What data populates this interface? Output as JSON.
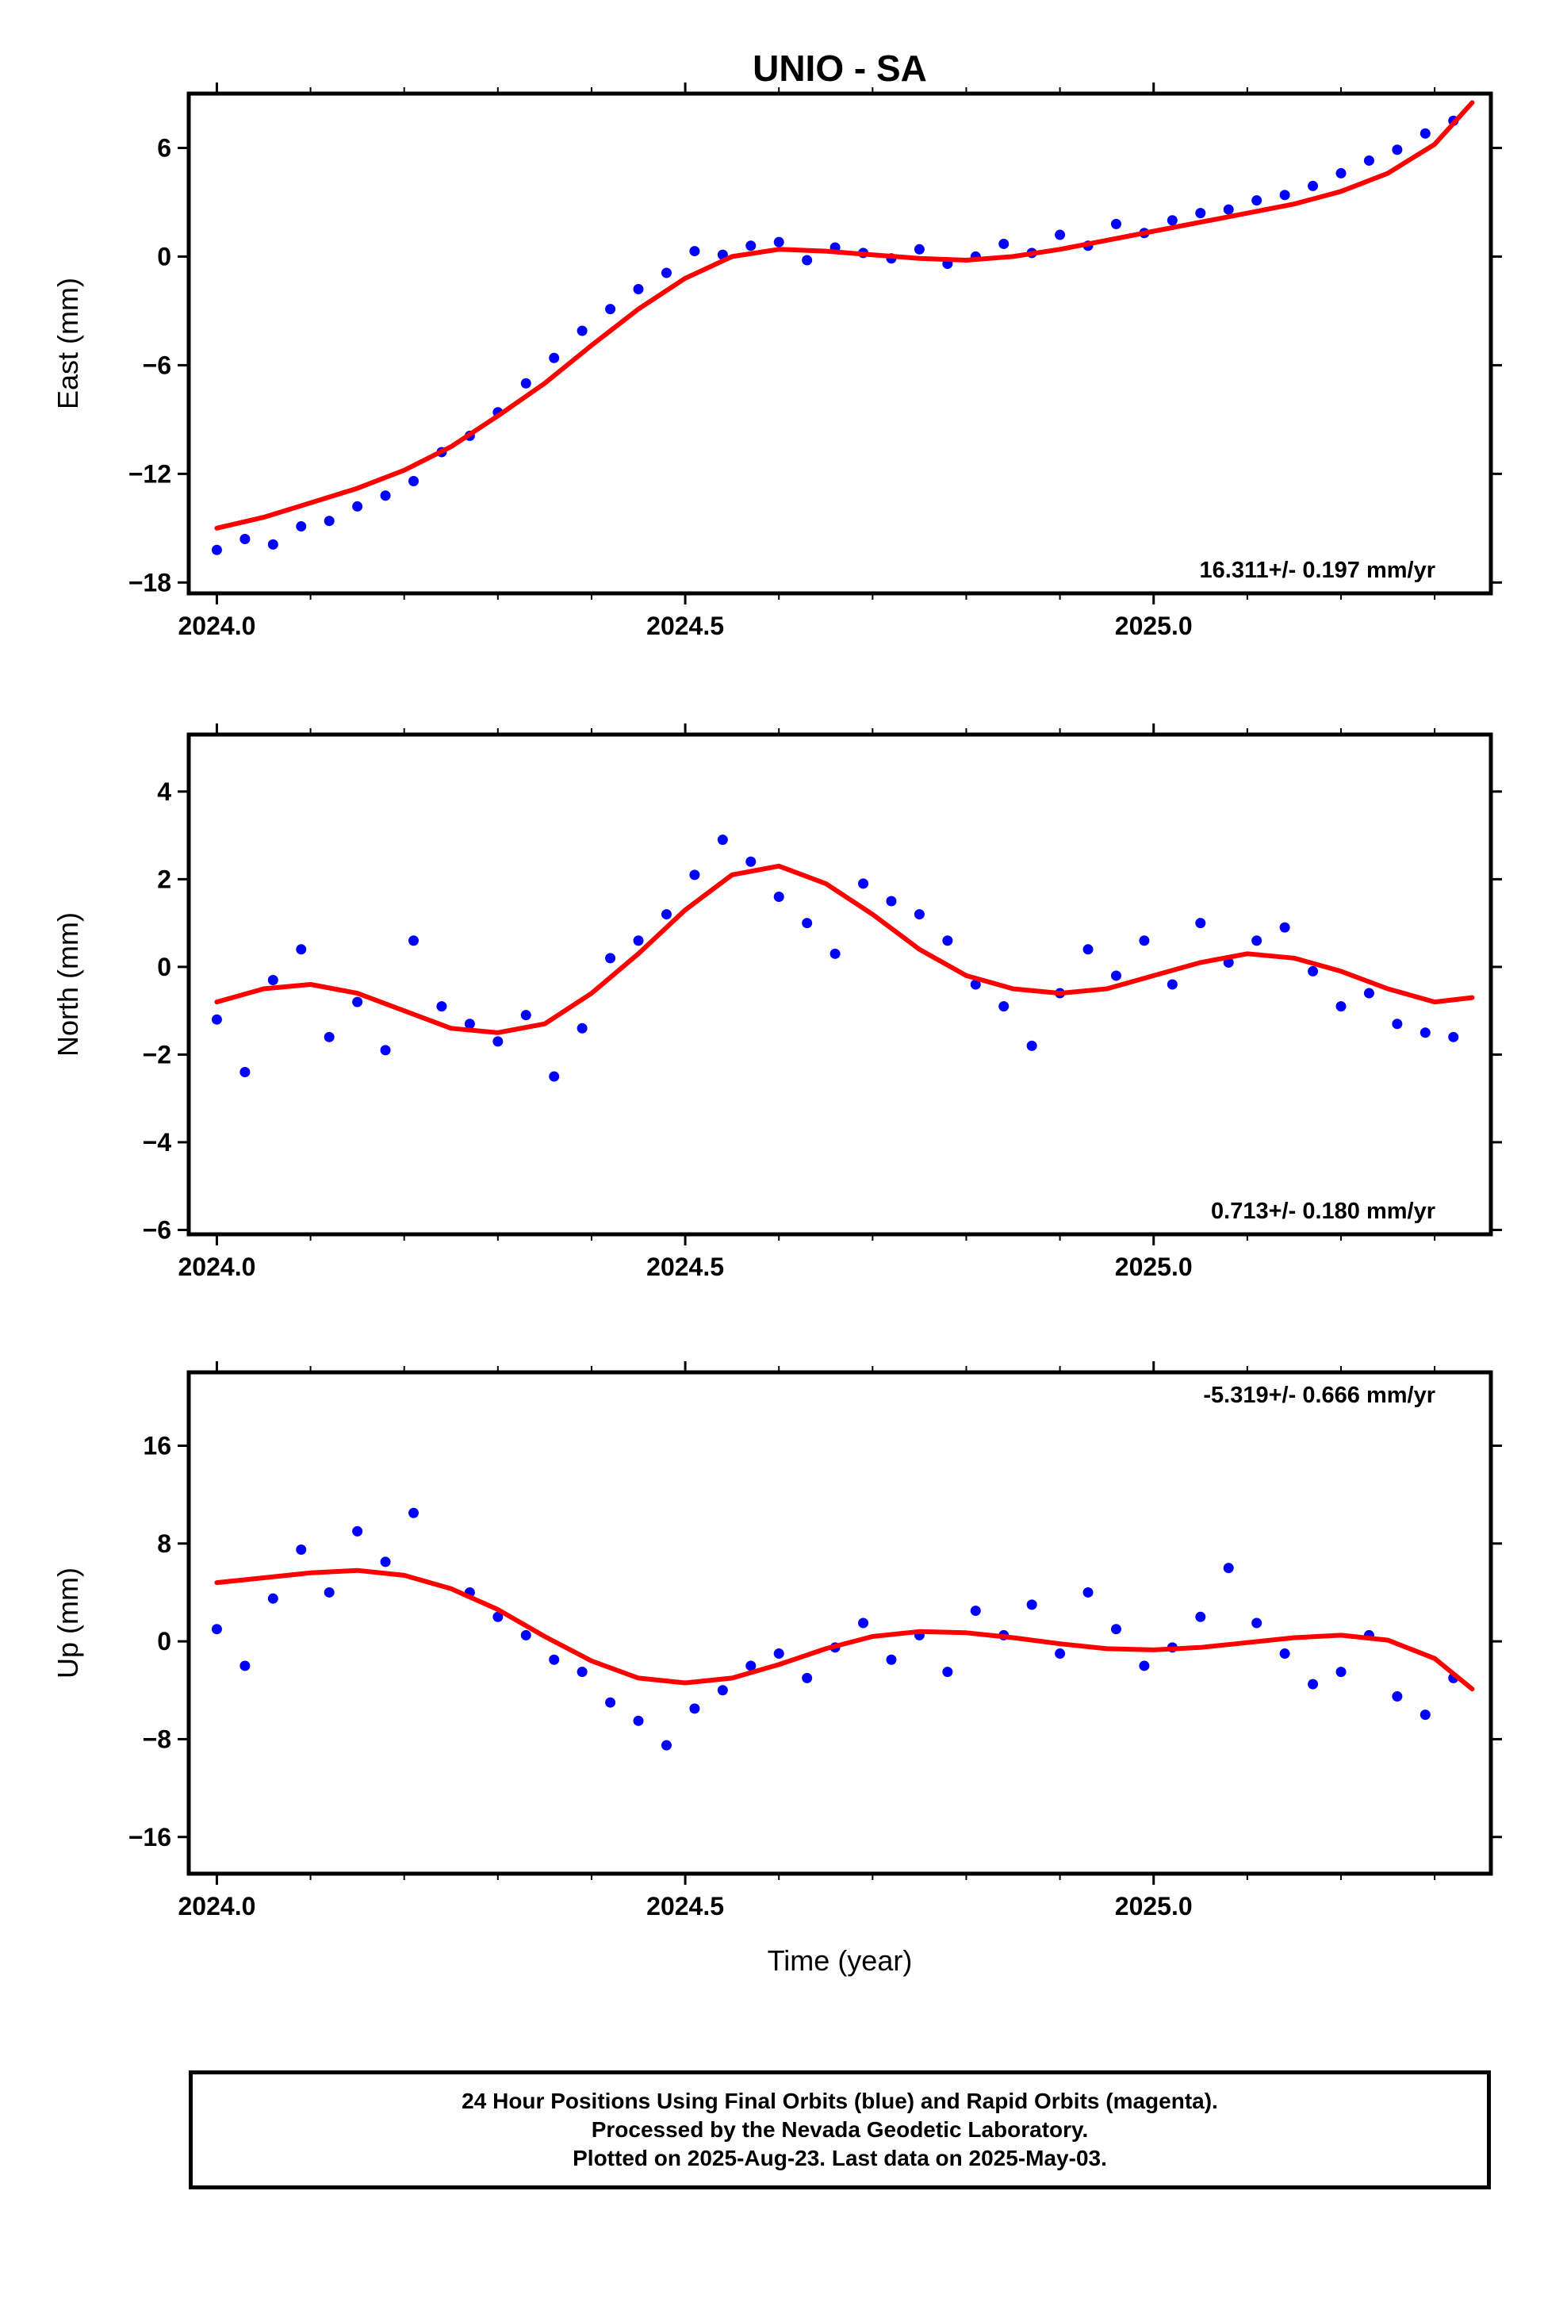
{
  "colors": {
    "points": "#0000ff",
    "model": "#ff0000",
    "frame": "#000000"
  },
  "chart_data": [
    {
      "type": "scatter",
      "title": "UNIO - SA",
      "ylabel": "East (mm)",
      "xlabel": "",
      "xlim": [
        2023.97,
        2025.36
      ],
      "ylim": [
        -18.6,
        9.0
      ],
      "x_ticks": [
        2024.0,
        2024.5,
        2025.0
      ],
      "x_tick_labels": [
        "2024.0",
        "2024.5",
        "2025.0"
      ],
      "y_ticks": [
        -18,
        -12,
        -6,
        0,
        6
      ],
      "y_tick_labels": [
        "−18",
        "−12",
        "−6",
        "0",
        "6"
      ],
      "rate_label": "16.311+/- 0.197 mm/yr",
      "series": [
        {
          "kind": "points",
          "x": [
            2024.0,
            2024.03,
            2024.06,
            2024.09,
            2024.12,
            2024.15,
            2024.18,
            2024.21,
            2024.24,
            2024.27,
            2024.3,
            2024.33,
            2024.36,
            2024.39,
            2024.42,
            2024.45,
            2024.48,
            2024.51,
            2024.54,
            2024.57,
            2024.6,
            2024.63,
            2024.66,
            2024.69,
            2024.72,
            2024.75,
            2024.78,
            2024.81,
            2024.84,
            2024.87,
            2024.9,
            2024.93,
            2024.96,
            2024.99,
            2025.02,
            2025.05,
            2025.08,
            2025.11,
            2025.14,
            2025.17,
            2025.2,
            2025.23,
            2025.26,
            2025.29,
            2025.32
          ],
          "y": [
            -16.2,
            -15.6,
            -15.9,
            -14.9,
            -14.6,
            -13.8,
            -13.2,
            -12.4,
            -10.8,
            -9.9,
            -8.6,
            -7.0,
            -5.6,
            -4.1,
            -2.9,
            -1.8,
            -0.9,
            0.3,
            0.1,
            0.6,
            0.8,
            -0.2,
            0.5,
            0.2,
            -0.1,
            0.4,
            -0.4,
            0.0,
            0.7,
            0.2,
            1.2,
            0.6,
            1.8,
            1.3,
            2.0,
            2.4,
            2.6,
            3.1,
            3.4,
            3.9,
            4.6,
            5.3,
            5.9,
            6.8,
            7.5
          ]
        },
        {
          "kind": "model",
          "x": [
            2024.0,
            2024.05,
            2024.1,
            2024.15,
            2024.2,
            2024.25,
            2024.3,
            2024.35,
            2024.4,
            2024.45,
            2024.5,
            2024.55,
            2024.6,
            2024.65,
            2024.7,
            2024.75,
            2024.8,
            2024.85,
            2024.9,
            2024.95,
            2025.0,
            2025.05,
            2025.1,
            2025.15,
            2025.2,
            2025.25,
            2025.3,
            2025.34
          ],
          "y": [
            -15.0,
            -14.4,
            -13.6,
            -12.8,
            -11.8,
            -10.5,
            -8.8,
            -7.0,
            -4.9,
            -2.9,
            -1.2,
            0.0,
            0.4,
            0.3,
            0.1,
            -0.1,
            -0.2,
            0.0,
            0.4,
            0.9,
            1.4,
            1.9,
            2.4,
            2.9,
            3.6,
            4.6,
            6.2,
            8.5
          ]
        }
      ]
    },
    {
      "type": "scatter",
      "ylabel": "North (mm)",
      "xlabel": "",
      "xlim": [
        2023.97,
        2025.36
      ],
      "ylim": [
        -6.1,
        5.3
      ],
      "x_ticks": [
        2024.0,
        2024.5,
        2025.0
      ],
      "x_tick_labels": [
        "2024.0",
        "2024.5",
        "2025.0"
      ],
      "y_ticks": [
        -6,
        -4,
        -2,
        0,
        2,
        4
      ],
      "y_tick_labels": [
        "−6",
        "−4",
        "−2",
        "0",
        "2",
        "4"
      ],
      "rate_label": "0.713+/- 0.180 mm/yr",
      "series": [
        {
          "kind": "points",
          "x": [
            2024.0,
            2024.03,
            2024.06,
            2024.09,
            2024.12,
            2024.15,
            2024.18,
            2024.21,
            2024.24,
            2024.27,
            2024.3,
            2024.33,
            2024.36,
            2024.39,
            2024.42,
            2024.45,
            2024.48,
            2024.51,
            2024.54,
            2024.57,
            2024.6,
            2024.63,
            2024.66,
            2024.69,
            2024.72,
            2024.75,
            2024.78,
            2024.81,
            2024.84,
            2024.87,
            2024.9,
            2024.93,
            2024.96,
            2024.99,
            2025.02,
            2025.05,
            2025.08,
            2025.11,
            2025.14,
            2025.17,
            2025.2,
            2025.23,
            2025.26,
            2025.29,
            2025.32
          ],
          "y": [
            -1.2,
            -2.4,
            -0.3,
            0.4,
            -1.6,
            -0.8,
            -1.9,
            0.6,
            -0.9,
            -1.3,
            -1.7,
            -1.1,
            -2.5,
            -1.4,
            0.2,
            0.6,
            1.2,
            2.1,
            2.9,
            2.4,
            1.6,
            1.0,
            0.3,
            1.9,
            1.5,
            1.2,
            0.6,
            -0.4,
            -0.9,
            -1.8,
            -0.6,
            0.4,
            -0.2,
            0.6,
            -0.4,
            1.0,
            0.1,
            0.6,
            0.9,
            -0.1,
            -0.9,
            -0.6,
            -1.3,
            -1.5,
            -1.6
          ]
        },
        {
          "kind": "model",
          "x": [
            2024.0,
            2024.05,
            2024.1,
            2024.15,
            2024.2,
            2024.25,
            2024.3,
            2024.35,
            2024.4,
            2024.45,
            2024.5,
            2024.55,
            2024.6,
            2024.65,
            2024.7,
            2024.75,
            2024.8,
            2024.85,
            2024.9,
            2024.95,
            2025.0,
            2025.05,
            2025.1,
            2025.15,
            2025.2,
            2025.25,
            2025.3,
            2025.34
          ],
          "y": [
            -0.8,
            -0.5,
            -0.4,
            -0.6,
            -1.0,
            -1.4,
            -1.5,
            -1.3,
            -0.6,
            0.3,
            1.3,
            2.1,
            2.3,
            1.9,
            1.2,
            0.4,
            -0.2,
            -0.5,
            -0.6,
            -0.5,
            -0.2,
            0.1,
            0.3,
            0.2,
            -0.1,
            -0.5,
            -0.8,
            -0.7
          ]
        }
      ]
    },
    {
      "type": "scatter",
      "ylabel": "Up (mm)",
      "xlabel": "Time (year)",
      "xlim": [
        2023.97,
        2025.36
      ],
      "ylim": [
        -19.0,
        22.0
      ],
      "x_ticks": [
        2024.0,
        2024.5,
        2025.0
      ],
      "x_tick_labels": [
        "2024.0",
        "2024.5",
        "2025.0"
      ],
      "y_ticks": [
        -16,
        -8,
        0,
        8,
        16
      ],
      "y_tick_labels": [
        "−16",
        "−8",
        "0",
        "8",
        "16"
      ],
      "rate_label": "-5.319+/- 0.666 mm/yr",
      "series": [
        {
          "kind": "points",
          "x": [
            2024.0,
            2024.03,
            2024.06,
            2024.09,
            2024.12,
            2024.15,
            2024.18,
            2024.21,
            2024.27,
            2024.3,
            2024.33,
            2024.36,
            2024.39,
            2024.42,
            2024.45,
            2024.48,
            2024.51,
            2024.54,
            2024.57,
            2024.6,
            2024.63,
            2024.66,
            2024.69,
            2024.72,
            2024.75,
            2024.78,
            2024.81,
            2024.84,
            2024.87,
            2024.9,
            2024.93,
            2024.96,
            2024.99,
            2025.02,
            2025.05,
            2025.08,
            2025.11,
            2025.14,
            2025.17,
            2025.2,
            2025.23,
            2025.26,
            2025.29,
            2025.32
          ],
          "y": [
            1.0,
            -2.0,
            3.5,
            7.5,
            4.0,
            9.0,
            6.5,
            10.5,
            4.0,
            2.0,
            0.5,
            -1.5,
            -2.5,
            -5.0,
            -6.5,
            -8.5,
            -5.5,
            -4.0,
            -2.0,
            -1.0,
            -3.0,
            -0.5,
            1.5,
            -1.5,
            0.5,
            -2.5,
            2.5,
            0.5,
            3.0,
            -1.0,
            4.0,
            1.0,
            -2.0,
            -0.5,
            2.0,
            6.0,
            1.5,
            -1.0,
            -3.5,
            -2.5,
            0.5,
            -4.5,
            -6.0,
            -3.0
          ]
        },
        {
          "kind": "model",
          "x": [
            2024.0,
            2024.05,
            2024.1,
            2024.15,
            2024.2,
            2024.25,
            2024.3,
            2024.35,
            2024.4,
            2024.45,
            2024.5,
            2024.55,
            2024.6,
            2024.65,
            2024.7,
            2024.75,
            2024.8,
            2024.85,
            2024.9,
            2024.95,
            2025.0,
            2025.05,
            2025.1,
            2025.15,
            2025.2,
            2025.25,
            2025.3,
            2025.34
          ],
          "y": [
            4.8,
            5.2,
            5.6,
            5.8,
            5.4,
            4.3,
            2.6,
            0.4,
            -1.6,
            -3.0,
            -3.4,
            -3.0,
            -1.9,
            -0.6,
            0.4,
            0.8,
            0.7,
            0.3,
            -0.2,
            -0.6,
            -0.7,
            -0.5,
            -0.1,
            0.3,
            0.5,
            0.1,
            -1.4,
            -3.9
          ]
        }
      ]
    }
  ],
  "footer": {
    "line1": "24 Hour Positions Using Final Orbits (blue) and Rapid Orbits (magenta).",
    "line2": "Processed by the Nevada Geodetic Laboratory.",
    "line3": "Plotted on 2025-Aug-23. Last data on 2025-May-03."
  }
}
